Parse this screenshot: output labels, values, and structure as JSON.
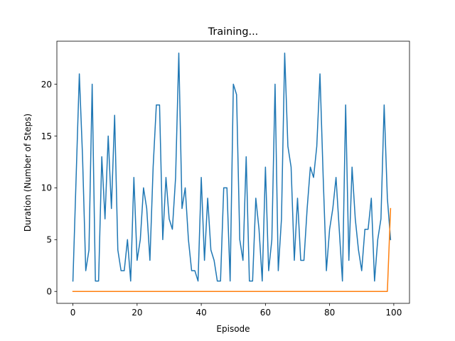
{
  "chart_data": {
    "type": "line",
    "title": "Training...",
    "xlabel": "Episode",
    "ylabel": "Duration (Number of Steps)",
    "xlim": [
      -5,
      104.9
    ],
    "ylim": [
      -1.15,
      24.15
    ],
    "xticks": [
      0,
      20,
      40,
      60,
      80,
      100
    ],
    "yticks": [
      0,
      5,
      10,
      15,
      20
    ],
    "grid": false,
    "legend": "none",
    "series": [
      {
        "color": "#1f77b4",
        "x_start": 0,
        "values": [
          1,
          11,
          21,
          13,
          2,
          4,
          20,
          1,
          1,
          13,
          7,
          15,
          8,
          17,
          4,
          2,
          2,
          5,
          1,
          11,
          3,
          5,
          10,
          8,
          3,
          12,
          18,
          18,
          5,
          11,
          7,
          6,
          11,
          23,
          8,
          10,
          5,
          2,
          2,
          1,
          11,
          3,
          9,
          4,
          3,
          1,
          1,
          10,
          10,
          1,
          20,
          19,
          5,
          3,
          13,
          1,
          1,
          9,
          6,
          1,
          12,
          2,
          5,
          20,
          2,
          7,
          23,
          14,
          12,
          3,
          9,
          3,
          3,
          8,
          12,
          11,
          14,
          21,
          11,
          2,
          6,
          8,
          11,
          6,
          1,
          18,
          3,
          12,
          7,
          4,
          2,
          6,
          6,
          9,
          1,
          5,
          7,
          18,
          9,
          5
        ]
      },
      {
        "color": "#ff7f0e",
        "x_start": 0,
        "values": [
          0,
          0,
          0,
          0,
          0,
          0,
          0,
          0,
          0,
          0,
          0,
          0,
          0,
          0,
          0,
          0,
          0,
          0,
          0,
          0,
          0,
          0,
          0,
          0,
          0,
          0,
          0,
          0,
          0,
          0,
          0,
          0,
          0,
          0,
          0,
          0,
          0,
          0,
          0,
          0,
          0,
          0,
          0,
          0,
          0,
          0,
          0,
          0,
          0,
          0,
          0,
          0,
          0,
          0,
          0,
          0,
          0,
          0,
          0,
          0,
          0,
          0,
          0,
          0,
          0,
          0,
          0,
          0,
          0,
          0,
          0,
          0,
          0,
          0,
          0,
          0,
          0,
          0,
          0,
          0,
          0,
          0,
          0,
          0,
          0,
          0,
          0,
          0,
          0,
          0,
          0,
          0,
          0,
          0,
          0,
          0,
          0,
          0,
          0,
          8
        ]
      }
    ]
  }
}
